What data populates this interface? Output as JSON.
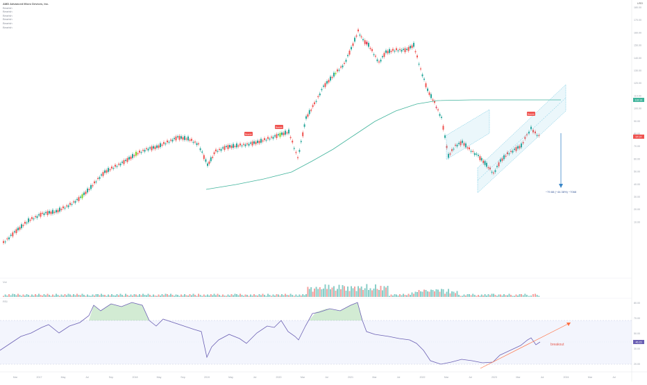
{
  "header": {
    "currency": "USD",
    "legend_lines": [
      "AMD Advanced Micro Devices, Inc.",
      "Bearish",
      "Bearish",
      "Bearish",
      "Bearish",
      "Bearish",
      "Bearish"
    ]
  },
  "annotations": {
    "measure": "−79.68 (−44.38%) −7068",
    "breakout": "breakout"
  },
  "labels": {
    "tag1": "Bearish",
    "tag2": "Bearish",
    "tag3": "Bearish",
    "current_price": "97.07",
    "ma_value": "132.31",
    "rsi_value": "46.15"
  },
  "colors": {
    "up": "#26a69a",
    "down": "#ef5350",
    "highlight_up": "#7ed321",
    "highlight_down": "#d81b3c",
    "ma": "#3fb39b",
    "rsi": "#6a5fb3",
    "channel": "#5bc0de",
    "breakout_line": "#ff7043",
    "measure_arrow": "#3a86c8"
  },
  "chart_data": {
    "type": "candlestick",
    "y_axis_ticks": [
      "180.00",
      "170.00",
      "160.00",
      "150.00",
      "140.00",
      "130.00",
      "120.00",
      "110.00",
      "100.00",
      "90.00",
      "80.00",
      "70.00",
      "60.00",
      "50.00",
      "40.00",
      "30.00",
      "20.00",
      "10.00"
    ],
    "x_axis_ticks": [
      "Mar",
      "2017",
      "May",
      "Jul",
      "Sep",
      "2018",
      "May",
      "Sep",
      "2019",
      "May",
      "Jul",
      "2020",
      "Mar",
      "Jul",
      "2021",
      "Mar",
      "Jul",
      "2022",
      "Mar",
      "Jul",
      "2023",
      "Mar",
      "Jul",
      "2024",
      "Mar",
      "Jul"
    ],
    "rsi_ticks": [
      "80.00",
      "70.00",
      "50.00",
      "30.00",
      "20.00"
    ],
    "volume_label": "Vol",
    "rsi_label": "RSI"
  }
}
